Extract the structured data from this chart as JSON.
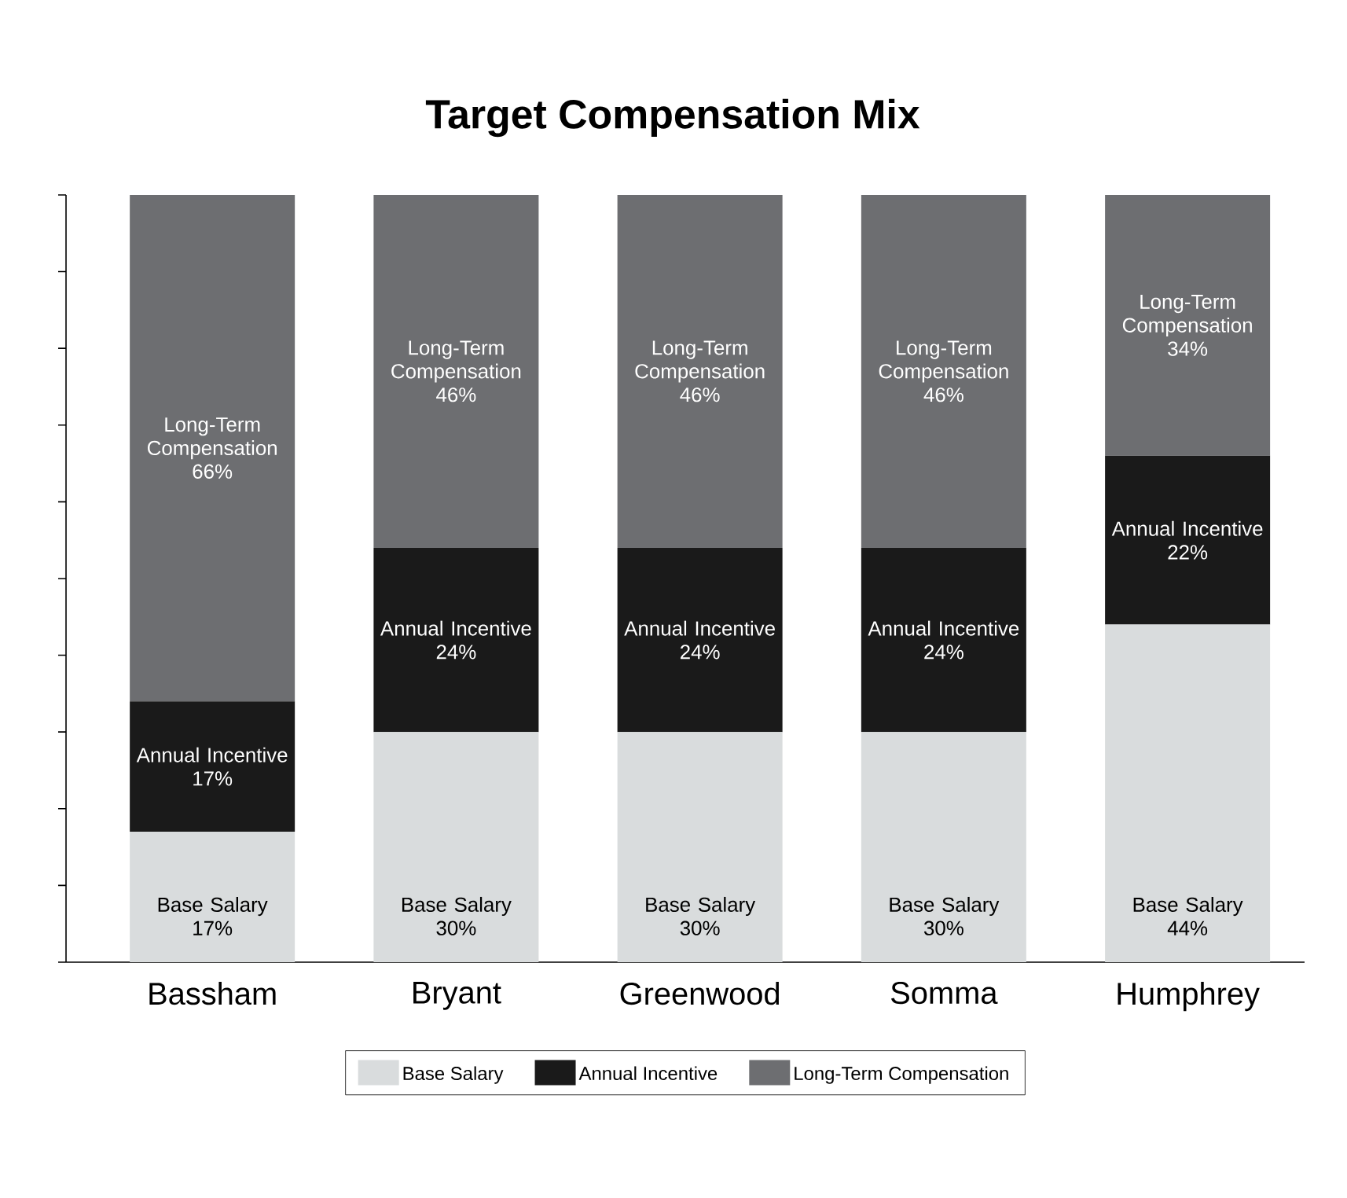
{
  "chart_data": {
    "type": "bar",
    "title": "Target Compensation Mix",
    "stacked": true,
    "categories": [
      "Bassham",
      "Bryant",
      "Greenwood",
      "Somma",
      "Humphrey"
    ],
    "series": [
      {
        "name": "Base Salary",
        "color": "#d9dcdd",
        "values": [
          17,
          30,
          30,
          30,
          44
        ],
        "value_labels": [
          "17%",
          "30%",
          "30%",
          "30%",
          "44%"
        ]
      },
      {
        "name": "Annual Incentive",
        "color": "#1a1a1a",
        "values": [
          17,
          24,
          24,
          24,
          22
        ],
        "value_labels": [
          "17%",
          "24%",
          "24%",
          "24%",
          "22%"
        ]
      },
      {
        "name": "Long-Term Compensation",
        "color": "#6d6e71",
        "values": [
          66,
          46,
          46,
          46,
          34
        ],
        "value_labels": [
          "66%",
          "46%",
          "46%",
          "46%",
          "34%"
        ]
      }
    ],
    "legend": "bottom",
    "grid": false
  }
}
